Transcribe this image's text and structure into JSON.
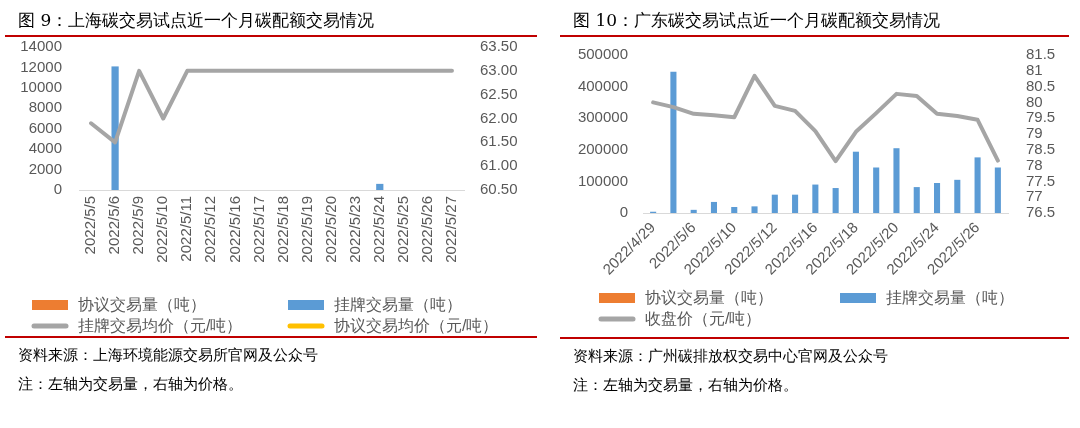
{
  "chart_data": [
    {
      "type": "bar",
      "title": "图 9：上海碳交易试点近一个月碳配额交易情况",
      "categories": [
        "2022/5/5",
        "2022/5/6",
        "2022/5/9",
        "2022/5/10",
        "2022/5/11",
        "2022/5/12",
        "2022/5/16",
        "2022/5/17",
        "2022/5/18",
        "2022/5/19",
        "2022/5/20",
        "2022/5/23",
        "2022/5/24",
        "2022/5/25",
        "2022/5/26",
        "2022/5/27"
      ],
      "series": [
        {
          "name": "协议交易量（吨）",
          "color": "#ed7d31",
          "values": [
            null,
            null,
            null,
            null,
            null,
            null,
            null,
            null,
            null,
            null,
            null,
            null,
            null,
            null,
            null,
            null
          ]
        },
        {
          "name": "挂牌交易量（吨）",
          "color": "#5b9bd5",
          "values": [
            null,
            12100,
            null,
            null,
            null,
            null,
            null,
            null,
            null,
            null,
            null,
            null,
            600,
            null,
            null,
            null
          ]
        },
        {
          "name": "挂牌交易均价（元/吨）",
          "type": "line",
          "axis": "y2",
          "color": "#a5a5a5",
          "values": [
            61.9,
            61.5,
            63,
            62,
            63,
            63,
            63,
            63,
            63,
            63,
            63,
            63,
            63,
            63,
            63,
            63
          ]
        },
        {
          "name": "协议交易均价（元/吨）",
          "type": "line",
          "axis": "y2",
          "color": "#ffc000",
          "values": [
            null,
            null,
            null,
            null,
            null,
            null,
            null,
            null,
            null,
            null,
            null,
            null,
            null,
            null,
            null,
            null
          ]
        }
      ],
      "ylim": [
        0,
        14000
      ],
      "yticks": [
        0,
        2000,
        4000,
        6000,
        8000,
        10000,
        12000,
        14000
      ],
      "y2lim": [
        60.5,
        63.5
      ],
      "y2ticks": [
        {
          "value": 60.5,
          "label": "60.50"
        },
        {
          "value": 61,
          "label": "61.00"
        },
        {
          "value": 61.5,
          "label": "61.50"
        },
        {
          "value": 62,
          "label": "62.00"
        },
        {
          "value": 62.5,
          "label": "62.50"
        },
        {
          "value": 63,
          "label": "63.00"
        },
        {
          "value": 63.5,
          "label": "63.50"
        }
      ],
      "legend": "bottom",
      "annotations": [
        "资料来源：上海环境能源交易所官网及公众号",
        "注：左轴为交易量，右轴为价格。"
      ]
    },
    {
      "type": "bar",
      "title": "图 10：广东碳交易试点近一个月碳配额交易情况",
      "categories": [
        "2022/4/29",
        null,
        "2022/5/6",
        null,
        "2022/5/10",
        null,
        "2022/5/12",
        null,
        "2022/5/16",
        null,
        "2022/5/18",
        null,
        "2022/5/20",
        null,
        "2022/5/24",
        null,
        "2022/5/26",
        null
      ],
      "series": [
        {
          "name": "协议交易量（吨）",
          "color": "#ed7d31",
          "values": [
            null,
            null,
            null,
            null,
            null,
            null,
            null,
            null,
            null,
            null,
            null,
            null,
            null,
            null,
            null,
            null,
            null,
            null
          ]
        },
        {
          "name": "挂牌交易量（吨）",
          "color": "#5b9bd5",
          "values": [
            4000,
            447000,
            10000,
            35000,
            19000,
            21000,
            58000,
            58000,
            90000,
            79000,
            194000,
            144000,
            205000,
            82000,
            95000,
            105000,
            176000,
            144000
          ]
        },
        {
          "name": "收盘价（元/吨）",
          "type": "line",
          "axis": "y2",
          "color": "#a5a5a5",
          "values": [
            80.0,
            79.85,
            79.64,
            79.59,
            79.53,
            80.84,
            79.89,
            79.73,
            79.09,
            78.14,
            79.07,
            79.66,
            80.27,
            80.2,
            79.64,
            79.57,
            79.45,
            78.16
          ]
        }
      ],
      "ylim": [
        0,
        500000
      ],
      "yticks": [
        0,
        100000,
        200000,
        300000,
        400000,
        500000
      ],
      "y2lim": [
        76.5,
        81.5
      ],
      "y2ticks": [
        76.5,
        77,
        77.5,
        78,
        78.5,
        79,
        79.5,
        80,
        80.5,
        81,
        81.5
      ],
      "legend": "bottom",
      "annotations": [
        "资料来源：广州碳排放权交易中心官网及公众号",
        "注：左轴为交易量，右轴为价格。"
      ]
    }
  ]
}
